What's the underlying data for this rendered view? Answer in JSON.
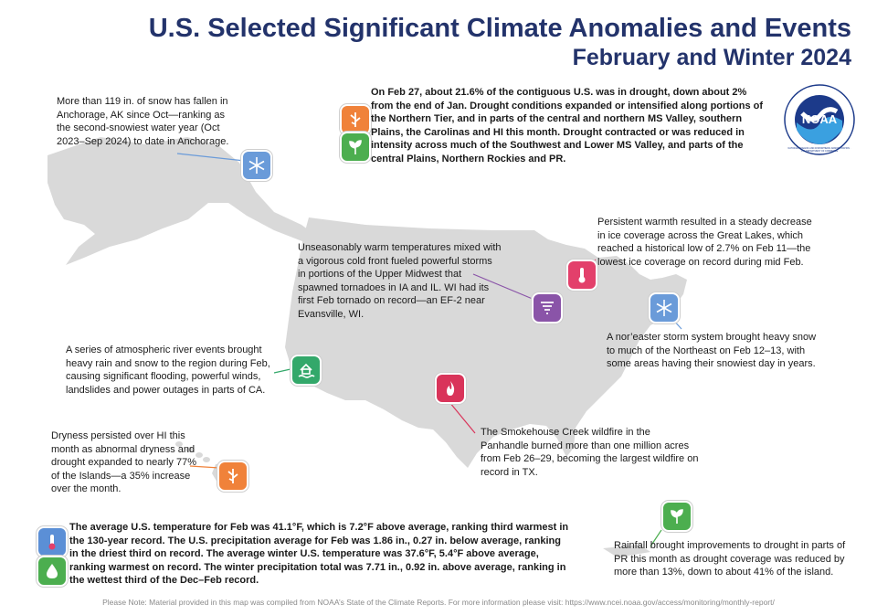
{
  "title": {
    "line1": "U.S. Selected Significant Climate Anomalies and Events",
    "line2": "February and Winter 2024"
  },
  "logo": {
    "text": "NOAA",
    "ring_text": "NATIONAL OCEANIC AND ATMOSPHERIC ADMINISTRATION · U.S. DEPARTMENT OF COMMERCE"
  },
  "events": {
    "drought_summary": "On Feb 27, about 21.6% of the contiguous U.S. was in drought, down about 2% from the end of Jan. Drought conditions expanded or intensified along portions of the Northern Tier, and in parts of the central and northern MS Valley, southern Plains, the Carolinas and HI this month. Drought contracted or was reduced in intensity across much of the Southwest and Lower MS Valley, and parts of the central Plains, Northern Rockies and PR.",
    "alaska": "More than 119 in. of snow has fallen in Anchorage, AK since Oct—ranking as the second-snowiest water year (Oct 2023–Sep 2024) to date in Anchorage.",
    "great_lakes": "Persistent warmth resulted in a steady decrease in ice coverage across the Great Lakes, which reached a historical low of 2.7% on Feb 11—the lowest ice coverage on record during mid Feb.",
    "midwest_tornado": "Unseasonably warm temperatures mixed with a vigorous cold front fueled powerful storms in portions of the Upper Midwest that spawned tornadoes in IA and IL. WI had its first Feb tornado on record—an EF-2 near Evansville, WI.",
    "noreaster": "A nor’easter storm system brought heavy snow to much of the Northeast on Feb 12–13, with some areas having their snowiest day in years.",
    "california": "A series of atmospheric river events brought heavy rain and snow to the region during Feb, causing significant flooding, powerful winds, landslides and power outages in parts of CA.",
    "texas_fire": "The Smokehouse Creek wildfire in the Panhandle burned more than one million acres from Feb 26–29, becoming the largest wildfire on record in TX.",
    "hawaii": "Dryness persisted over HI this month as abnormal dryness and drought expanded to nearly 77% of the Islands—a 35% increase over the month.",
    "puerto_rico": "Rainfall brought improvements to drought in parts of PR this month as drought coverage was reduced by more than 13%, down to about 41% of the island.",
    "national_summary": "The average U.S. temperature for Feb was 41.1°F, which is 7.2°F above average, ranking third warmest in the 130-year record. The U.S. precipitation average for Feb was 1.86 in., 0.27 in. below average, ranking in the driest third on record. The average winter U.S. temperature was 37.6°F, 5.4°F above average, ranking warmest on record. The winter precipitation total was 7.71 in., 0.92 in. above average, ranking in the wettest third of the Dec–Feb record."
  },
  "note": "Please Note: Material provided in this map was compiled from NOAA’s State of the Climate Reports. For more information please visit: https://www.ncei.noaa.gov/access/monitoring/monthly-report/",
  "colors": {
    "title": "#23336b",
    "map_fill": "#d9d9d9",
    "drought_icon": "#f0823a",
    "improvement_icon": "#4cae4f",
    "snow_icon": "#6a9bd9",
    "temperature_icon": "#e3406b",
    "tornado_icon": "#8a54a8",
    "flood_icon": "#33a86a",
    "fire_icon": "#d9345a"
  },
  "icons": [
    "drought-icon",
    "drought-improvement-icon",
    "snowflake-icon",
    "thermometer-icon",
    "tornado-icon",
    "flood-icon",
    "wildfire-icon"
  ]
}
